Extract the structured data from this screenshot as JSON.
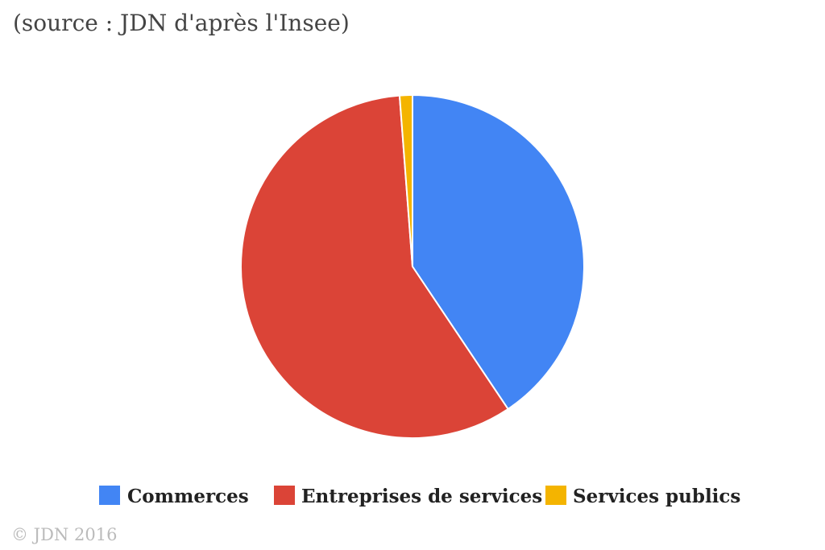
{
  "source": "(source : JDN d'après l'Insee)",
  "copyright": "© JDN 2016",
  "chart_data": {
    "type": "pie",
    "categories": [
      "Commerces",
      "Entreprises de services",
      "Services publics"
    ],
    "values": [
      40.6,
      58.2,
      1.2
    ],
    "colors": [
      "#4285f4",
      "#db4437",
      "#f4b400"
    ],
    "legend": "bottom",
    "slice_labels": "none"
  }
}
